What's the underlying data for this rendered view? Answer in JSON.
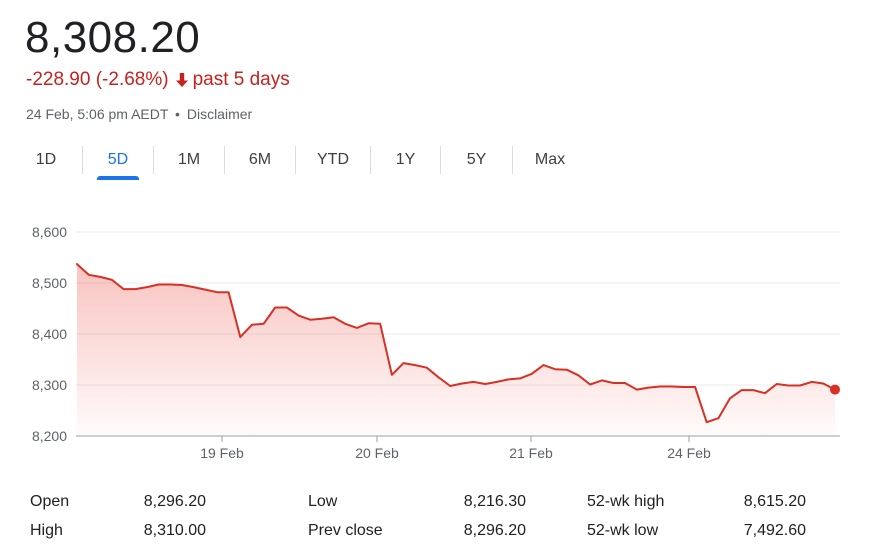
{
  "quote": {
    "price": "8,308.20",
    "change": "-228.90 (-2.68%)",
    "period": "past 5 days",
    "timestamp": "24 Feb, 5:06 pm AEDT",
    "separator": "•",
    "disclaimer": "Disclaimer",
    "down_color": "#c5221f"
  },
  "tabs": [
    {
      "label": "1D",
      "active": false
    },
    {
      "label": "5D",
      "active": true
    },
    {
      "label": "1M",
      "active": false
    },
    {
      "label": "6M",
      "active": false
    },
    {
      "label": "YTD",
      "active": false
    },
    {
      "label": "1Y",
      "active": false
    },
    {
      "label": "5Y",
      "active": false
    },
    {
      "label": "Max",
      "active": false
    }
  ],
  "chart_data": {
    "type": "area",
    "title": "",
    "xlabel": "",
    "ylabel": "",
    "ylim": [
      8200,
      8600
    ],
    "yticks": [
      "8,600",
      "8,500",
      "8,400",
      "8,300",
      "8,200"
    ],
    "xticks": [
      "19 Feb",
      "20 Feb",
      "21 Feb",
      "24 Feb"
    ],
    "grid": true,
    "line_color": "#d93025",
    "series": [
      {
        "values": [
          8537,
          8516,
          8512,
          8506,
          8488,
          8488,
          8492,
          8497,
          8497,
          8496,
          8492,
          8487,
          8482,
          8482,
          8394,
          8418,
          8420,
          8452,
          8452,
          8436,
          8428,
          8430,
          8433,
          8420,
          8412,
          8421,
          8420,
          8320,
          8343,
          8339,
          8334,
          8315,
          8298,
          8303,
          8306,
          8302,
          8306,
          8311,
          8313,
          8322,
          8339,
          8331,
          8330,
          8319,
          8301,
          8309,
          8304,
          8304,
          8291,
          8295,
          8297,
          8297,
          8296,
          8296,
          8227,
          8235,
          8274,
          8290,
          8290,
          8284,
          8302,
          8299,
          8299,
          8306,
          8303,
          8291
        ]
      }
    ]
  },
  "stats": {
    "open_label": "Open",
    "open_value": "8,296.20",
    "high_label": "High",
    "high_value": "8,310.00",
    "low_label": "Low",
    "low_value": "8,216.30",
    "prev_close_label": "Prev close",
    "prev_close_value": "8,296.20",
    "wk52_high_label": "52-wk high",
    "wk52_high_value": "8,615.20",
    "wk52_low_label": "52-wk low",
    "wk52_low_value": "7,492.60"
  }
}
